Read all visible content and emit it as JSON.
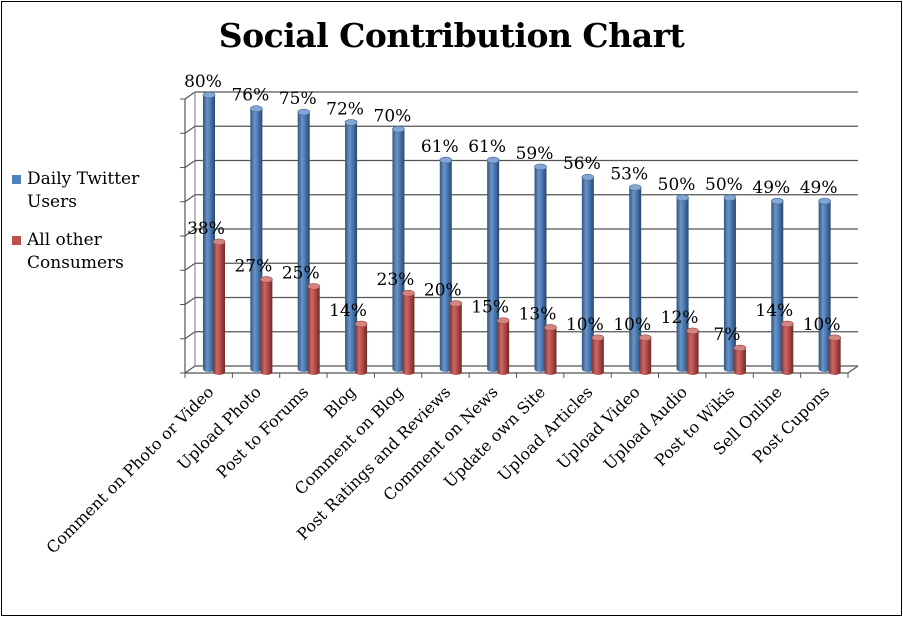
{
  "chart_data": {
    "type": "bar",
    "title": "Social Contribution Chart",
    "categories": [
      "Comment on Photo or Video",
      "Upload Photo",
      "Post to Forums",
      "Blog",
      "Comment on Blog",
      "Post Ratings and Reviews",
      "Comment on News",
      "Update own Site",
      "Upload Articles",
      "Upload Video",
      "Upload Audio",
      "Post to Wikis",
      "Sell Online",
      "Post Cupons"
    ],
    "series": [
      {
        "name": "Daily Twitter Users",
        "color": "#4f81bd",
        "values": [
          80,
          76,
          75,
          72,
          70,
          61,
          61,
          59,
          56,
          53,
          50,
          50,
          49,
          49
        ],
        "labels": [
          "80%",
          "76%",
          "75%",
          "72%",
          "70%",
          "61%",
          "61%",
          "59%",
          "56%",
          "53%",
          "50%",
          "50%",
          "49%",
          "49%"
        ]
      },
      {
        "name": "All other Consumers",
        "color": "#c0504d",
        "values": [
          38,
          27,
          25,
          14,
          23,
          20,
          15,
          13,
          10,
          10,
          12,
          7,
          14,
          10
        ],
        "labels": [
          "38%",
          "27%",
          "25%",
          "14%",
          "23%",
          "20%",
          "15%",
          "13%",
          "10%",
          "10%",
          "12%",
          "7%",
          "14%",
          "10%"
        ]
      }
    ],
    "ylim": [
      0,
      80
    ],
    "grid": true,
    "legend_position": "left",
    "bar_style": "3d-cylinder"
  }
}
